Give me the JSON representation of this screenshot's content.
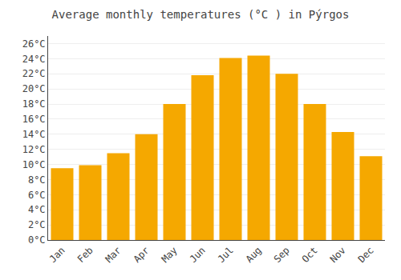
{
  "chart_data": {
    "type": "bar",
    "title": "Average monthly temperatures (°C ) in Pýrgos",
    "categories": [
      "Jan",
      "Feb",
      "Mar",
      "Apr",
      "May",
      "Jun",
      "Jul",
      "Aug",
      "Sep",
      "Oct",
      "Nov",
      "Dec"
    ],
    "values": [
      9.5,
      9.9,
      11.5,
      14.0,
      18.0,
      21.8,
      24.1,
      24.4,
      22.0,
      18.0,
      14.3,
      11.1
    ],
    "color": "#F5A800",
    "ylim": [
      0,
      27
    ],
    "yticks": [
      {
        "value": 0,
        "label": "0°C"
      },
      {
        "value": 2,
        "label": "2°C"
      },
      {
        "value": 4,
        "label": "4°C"
      },
      {
        "value": 6,
        "label": "6°C"
      },
      {
        "value": 8,
        "label": "8°C"
      },
      {
        "value": 10,
        "label": "10°C"
      },
      {
        "value": 12,
        "label": "12°C"
      },
      {
        "value": 14,
        "label": "14°C"
      },
      {
        "value": 16,
        "label": "16°C"
      },
      {
        "value": 18,
        "label": "18°C"
      },
      {
        "value": 20,
        "label": "20°C"
      },
      {
        "value": 22,
        "label": "22°C"
      },
      {
        "value": 24,
        "label": "24°C"
      },
      {
        "value": 26,
        "label": "26°C"
      }
    ],
    "grid": true
  }
}
